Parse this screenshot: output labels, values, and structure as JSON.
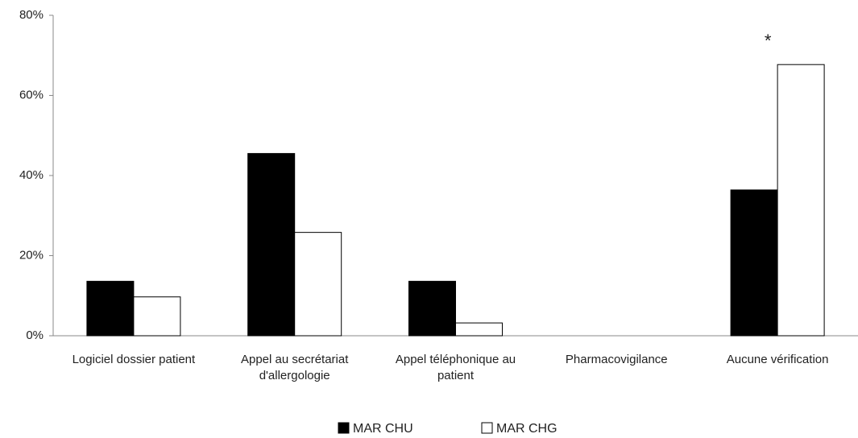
{
  "chart_data": {
    "type": "bar",
    "categories": [
      "Logiciel dossier patient",
      "Appel au secrétariat d'allergologie",
      "Appel téléphonique au patient",
      "Pharmacovigilance",
      "Aucune vérification"
    ],
    "series": [
      {
        "name": "MAR CHU",
        "color": "#000000",
        "values": [
          13.6,
          45.5,
          13.6,
          0,
          36.4
        ]
      },
      {
        "name": "MAR CHG",
        "color": "#ffffff",
        "values": [
          9.7,
          25.8,
          3.2,
          0,
          67.7
        ]
      }
    ],
    "ylim": [
      0,
      80
    ],
    "yticks": [
      {
        "value": 0,
        "label": "0%"
      },
      {
        "value": 20,
        "label": "20%"
      },
      {
        "value": 40,
        "label": "40%"
      },
      {
        "value": 60,
        "label": "60%"
      },
      {
        "value": 80,
        "label": "80%"
      }
    ],
    "grid": false,
    "legend": "bottom",
    "annotations": [
      {
        "text": "*"
      }
    ]
  }
}
